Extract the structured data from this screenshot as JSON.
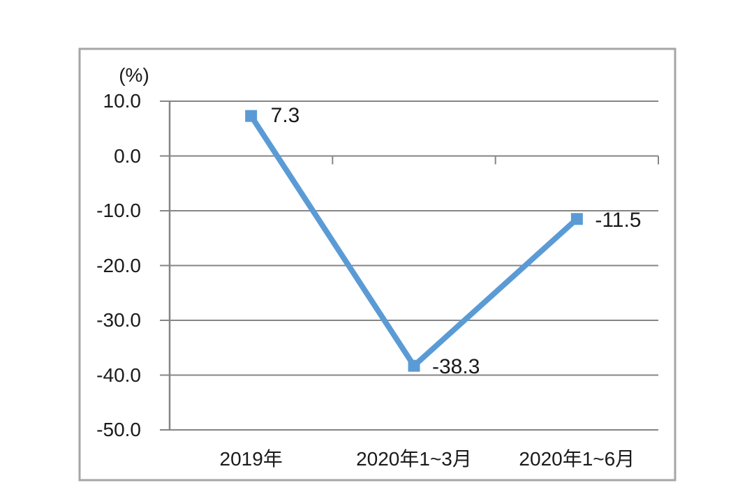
{
  "page": {
    "background": "#ffffff"
  },
  "chart_data": {
    "type": "line",
    "title": "",
    "unit_label": "(%)",
    "categories": [
      "2019年",
      "2020年1~3月",
      "2020年1~6月"
    ],
    "values": [
      7.3,
      -38.3,
      -11.5
    ],
    "data_labels": [
      "7.3",
      "-38.3",
      "-11.5"
    ],
    "y_ticks": [
      10.0,
      0.0,
      -10.0,
      -20.0,
      -30.0,
      -40.0,
      -50.0
    ],
    "y_tick_labels": [
      "10.0",
      "0.0",
      "-10.0",
      "-20.0",
      "-30.0",
      "-40.0",
      "-50.0"
    ],
    "ylim": [
      -50,
      10
    ],
    "xlabel": "",
    "ylabel": "(%)",
    "grid": true,
    "legend": "none",
    "marker": "square",
    "colors": {
      "line": "#5B9BD5",
      "grid": "#858585",
      "frame": "#A6A6A6",
      "text": "#1A1A1A"
    }
  }
}
